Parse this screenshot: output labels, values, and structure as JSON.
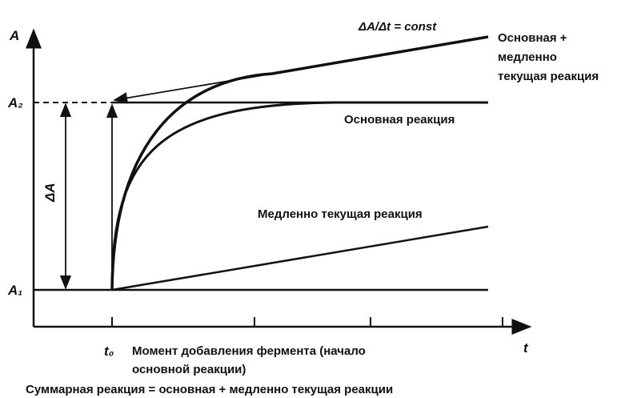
{
  "axes": {
    "y_label": "A",
    "x_label": "t",
    "a2": "A₂",
    "a1": "A₁",
    "delta_a": "ΔA",
    "t0": "t₀"
  },
  "labels": {
    "slope": "ΔA/Δt = const",
    "combined": [
      "Основная +",
      "медленно",
      "текущая реакция"
    ],
    "main": "Основная реакция",
    "slow": "Медленно текущая реакция",
    "moment": [
      "Момент добавления фермента (начало",
      "основной реакции)"
    ],
    "caption": "Суммарная реакция = основная + медленно текущая реакции"
  }
}
